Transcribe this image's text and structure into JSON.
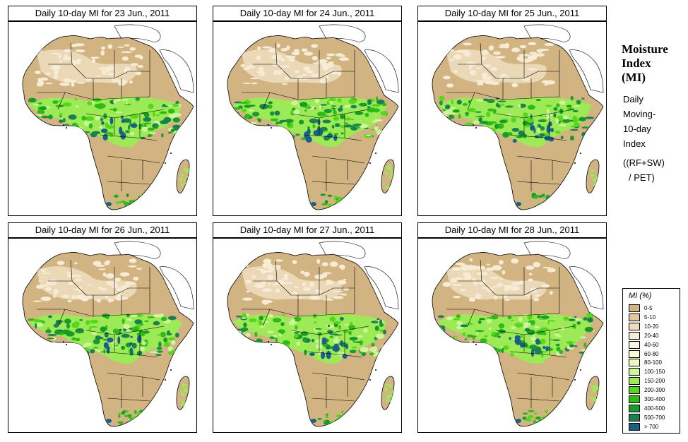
{
  "panels": [
    {
      "title": "Daily 10-day MI for  23 Jun., 2011"
    },
    {
      "title": "Daily 10-day MI for  24 Jun., 2011"
    },
    {
      "title": "Daily 10-day MI for  25 Jun., 2011"
    },
    {
      "title": "Daily 10-day MI for  26 Jun., 2011"
    },
    {
      "title": "Daily 10-day MI for  27 Jun., 2011"
    },
    {
      "title": "Daily 10-day MI for  28 Jun., 2011"
    }
  ],
  "legend": {
    "title_lines": [
      "Moisture",
      "Index",
      "(MI)"
    ],
    "desc_lines": [
      "Daily",
      "Moving-",
      "10-day",
      "Index"
    ],
    "formula_lines": [
      "((RF+SW)",
      "/ PET)"
    ],
    "scale_title": "MI (%)",
    "classes": [
      {
        "label": "0-5",
        "color": "#d2b483"
      },
      {
        "label": "5-10",
        "color": "#e0c89c"
      },
      {
        "label": "10-20",
        "color": "#ecdcbb"
      },
      {
        "label": "20-40",
        "color": "#f6ecd5"
      },
      {
        "label": "40-60",
        "color": "#fbf5df"
      },
      {
        "label": "60-80",
        "color": "#f8fbd0"
      },
      {
        "label": "80-100",
        "color": "#eafab8"
      },
      {
        "label": "100-150",
        "color": "#cdf59a"
      },
      {
        "label": "150-200",
        "color": "#9cea56"
      },
      {
        "label": "200-300",
        "color": "#55d81a"
      },
      {
        "label": "300-400",
        "color": "#2fbb17"
      },
      {
        "label": "400-500",
        "color": "#199a29"
      },
      {
        "label": "500-700",
        "color": "#1b7f52"
      },
      {
        "label": "> 700",
        "color": "#1a5f86"
      }
    ]
  }
}
